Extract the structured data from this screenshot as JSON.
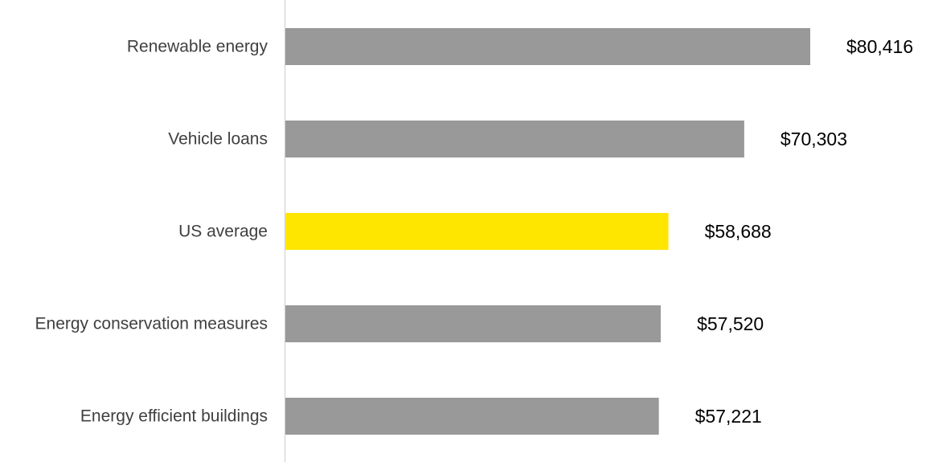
{
  "chart_data": {
    "type": "bar",
    "orientation": "horizontal",
    "categories": [
      "Renewable energy",
      "Vehicle loans",
      "US average",
      "Energy conservation measures",
      "Energy efficient buildings"
    ],
    "values": [
      80416,
      70303,
      58688,
      57520,
      57221
    ],
    "value_labels": [
      "$80,416",
      "$70,303",
      "$58,688",
      "$57,520",
      "$57,221"
    ],
    "bar_colors": [
      "#999999",
      "#999999",
      "#FFE600",
      "#999999",
      "#999999"
    ],
    "axis_color": "#d9d9d9",
    "title": "",
    "xlabel": "",
    "ylabel": "",
    "xlim": [
      0,
      80416
    ],
    "grid": false,
    "legend": "none"
  }
}
